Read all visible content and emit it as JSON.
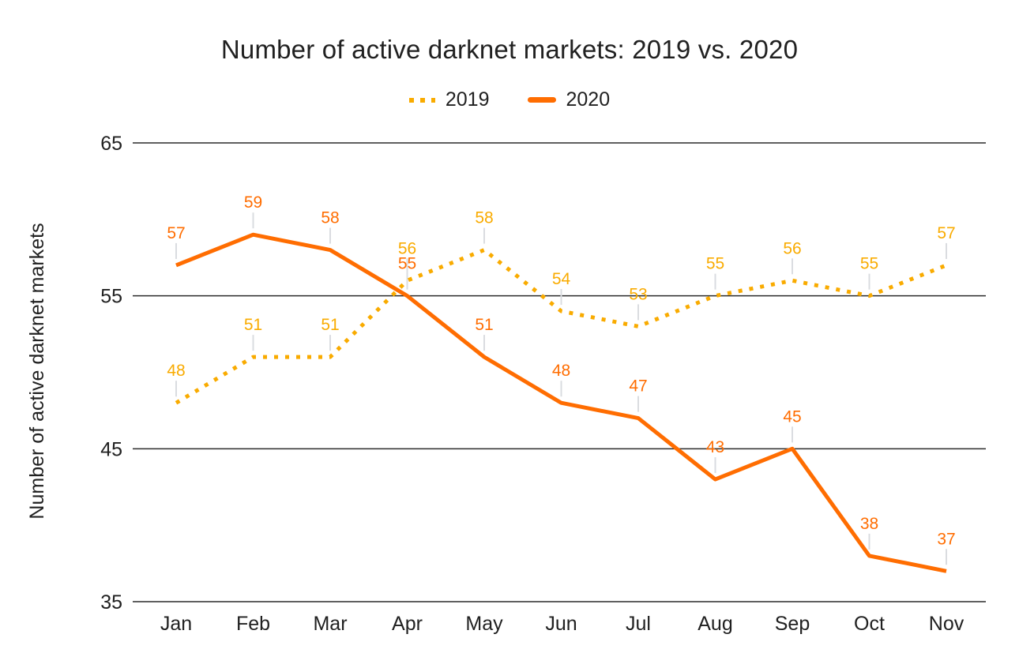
{
  "title": "Number of active darknet markets: 2019 vs. 2020",
  "colors": {
    "text": "#212121",
    "gridline": "#2b2b2b",
    "stem": "#dadce0",
    "series_2019": "#F9AB00",
    "series_2020": "#FF6D01",
    "background": "#ffffff"
  },
  "chart_data": {
    "type": "line",
    "title": "Number of active darknet markets: 2019 vs. 2020",
    "categories": [
      "Jan",
      "Feb",
      "Mar",
      "Apr",
      "May",
      "Jun",
      "Jul",
      "Aug",
      "Sep",
      "Oct",
      "Nov"
    ],
    "series": [
      {
        "name": "2019",
        "style": "dotted",
        "color": "#F9AB00",
        "values": [
          48,
          51,
          51,
          56,
          58,
          54,
          53,
          55,
          56,
          55,
          57
        ]
      },
      {
        "name": "2020",
        "style": "solid",
        "color": "#FF6D01",
        "values": [
          57,
          59,
          58,
          55,
          51,
          48,
          47,
          43,
          45,
          38,
          37
        ]
      }
    ],
    "xlabel": "",
    "ylabel": "Number of active darknet markets",
    "ylim": [
      35,
      65
    ],
    "yticks": [
      65,
      55,
      45,
      35
    ],
    "grid": true,
    "legend_position": "top",
    "data_labels": true
  }
}
